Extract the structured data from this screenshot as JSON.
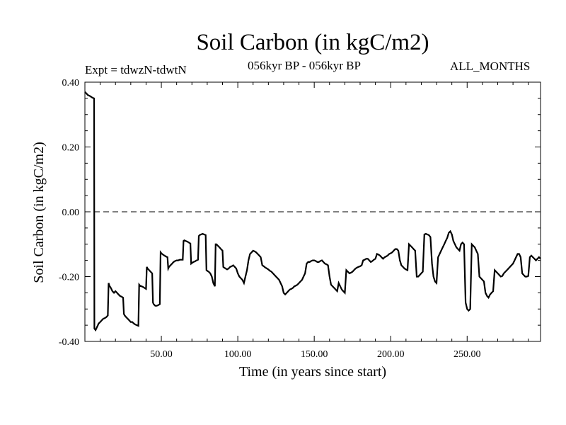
{
  "header": {
    "title": "Soil Carbon (in kgC/m2)",
    "expt": "Expt = tdwzN-tdwtN",
    "period": "056kyr BP - 056kyr BP",
    "months": "ALL_MONTHS"
  },
  "chart_data": {
    "type": "line",
    "title": "Soil Carbon (in kgC/m2)",
    "xlabel": "Time (in years since start)",
    "ylabel": "Soil Carbon (in kgC/m2)",
    "xlim": [
      0,
      298
    ],
    "ylim": [
      -0.4,
      0.4
    ],
    "x_ticks": [
      50,
      100,
      150,
      200,
      250
    ],
    "x_tick_labels": [
      "50.00",
      "100.00",
      "150.00",
      "200.00",
      "250.00"
    ],
    "y_ticks": [
      -0.4,
      -0.2,
      0.0,
      0.2,
      0.4
    ],
    "y_tick_labels": [
      "-0.40",
      "-0.20",
      "0.00",
      "0.20",
      "0.40"
    ],
    "reference_line": {
      "y": 0.0,
      "style": "dashed"
    },
    "grid": false,
    "series": [
      {
        "color": "#000000",
        "points": [
          [
            0,
            0.37
          ],
          [
            1,
            0.365
          ],
          [
            2,
            0.36
          ],
          [
            3,
            0.358
          ],
          [
            4,
            0.355
          ],
          [
            5,
            0.352
          ],
          [
            6,
            0.35
          ],
          [
            6.2,
            -0.36
          ],
          [
            7,
            -0.365
          ],
          [
            8,
            -0.355
          ],
          [
            9,
            -0.345
          ],
          [
            10,
            -0.34
          ],
          [
            11,
            -0.335
          ],
          [
            12,
            -0.33
          ],
          [
            13,
            -0.328
          ],
          [
            14,
            -0.325
          ],
          [
            15,
            -0.32
          ],
          [
            15.5,
            -0.22
          ],
          [
            16,
            -0.228
          ],
          [
            17,
            -0.235
          ],
          [
            18,
            -0.245
          ],
          [
            19,
            -0.25
          ],
          [
            20,
            -0.245
          ],
          [
            21,
            -0.25
          ],
          [
            22,
            -0.255
          ],
          [
            23,
            -0.26
          ],
          [
            24,
            -0.262
          ],
          [
            25,
            -0.265
          ],
          [
            25.5,
            -0.315
          ],
          [
            26,
            -0.32
          ],
          [
            27,
            -0.325
          ],
          [
            28,
            -0.33
          ],
          [
            29,
            -0.335
          ],
          [
            30,
            -0.34
          ],
          [
            31,
            -0.34
          ],
          [
            32,
            -0.345
          ],
          [
            33,
            -0.348
          ],
          [
            34,
            -0.35
          ],
          [
            35,
            -0.352
          ],
          [
            35.5,
            -0.225
          ],
          [
            36,
            -0.228
          ],
          [
            37,
            -0.23
          ],
          [
            38,
            -0.232
          ],
          [
            39,
            -0.235
          ],
          [
            40,
            -0.238
          ],
          [
            40.5,
            -0.17
          ],
          [
            41,
            -0.175
          ],
          [
            42,
            -0.18
          ],
          [
            43,
            -0.185
          ],
          [
            44,
            -0.19
          ],
          [
            44.5,
            -0.28
          ],
          [
            45,
            -0.285
          ],
          [
            46,
            -0.29
          ],
          [
            47,
            -0.29
          ],
          [
            48,
            -0.288
          ],
          [
            49,
            -0.285
          ],
          [
            49.5,
            -0.125
          ],
          [
            50,
            -0.128
          ],
          [
            51,
            -0.132
          ],
          [
            52,
            -0.135
          ],
          [
            53,
            -0.138
          ],
          [
            54,
            -0.14
          ],
          [
            54.5,
            -0.175
          ],
          [
            55,
            -0.17
          ],
          [
            56,
            -0.165
          ],
          [
            57,
            -0.16
          ],
          [
            58,
            -0.155
          ],
          [
            59,
            -0.152
          ],
          [
            60,
            -0.15
          ],
          [
            61,
            -0.15
          ],
          [
            62,
            -0.148
          ],
          [
            63,
            -0.148
          ],
          [
            64,
            -0.148
          ],
          [
            64.5,
            -0.09
          ],
          [
            65,
            -0.088
          ],
          [
            66,
            -0.09
          ],
          [
            67,
            -0.092
          ],
          [
            68,
            -0.095
          ],
          [
            69,
            -0.098
          ],
          [
            69.5,
            -0.16
          ],
          [
            70,
            -0.158
          ],
          [
            71,
            -0.155
          ],
          [
            72,
            -0.153
          ],
          [
            73,
            -0.15
          ],
          [
            74,
            -0.148
          ],
          [
            74.5,
            -0.075
          ],
          [
            75,
            -0.072
          ],
          [
            76,
            -0.07
          ],
          [
            77,
            -0.068
          ],
          [
            78,
            -0.07
          ],
          [
            79,
            -0.072
          ],
          [
            79.5,
            -0.18
          ],
          [
            80,
            -0.182
          ],
          [
            81,
            -0.185
          ],
          [
            82,
            -0.19
          ],
          [
            83,
            -0.2
          ],
          [
            84,
            -0.22
          ],
          [
            85,
            -0.23
          ],
          [
            85.5,
            -0.1
          ],
          [
            86,
            -0.1
          ],
          [
            87,
            -0.105
          ],
          [
            88,
            -0.11
          ],
          [
            89,
            -0.115
          ],
          [
            90,
            -0.12
          ],
          [
            90.5,
            -0.17
          ],
          [
            91,
            -0.172
          ],
          [
            92,
            -0.175
          ],
          [
            93,
            -0.178
          ],
          [
            94,
            -0.175
          ],
          [
            95,
            -0.17
          ],
          [
            96,
            -0.168
          ],
          [
            97,
            -0.165
          ],
          [
            98,
            -0.17
          ],
          [
            99,
            -0.175
          ],
          [
            100,
            -0.19
          ],
          [
            101,
            -0.2
          ],
          [
            102,
            -0.205
          ],
          [
            103,
            -0.21
          ],
          [
            104,
            -0.22
          ],
          [
            105,
            -0.2
          ],
          [
            106,
            -0.18
          ],
          [
            107,
            -0.15
          ],
          [
            108,
            -0.13
          ],
          [
            109,
            -0.125
          ],
          [
            110,
            -0.12
          ],
          [
            111,
            -0.122
          ],
          [
            112,
            -0.125
          ],
          [
            113,
            -0.13
          ],
          [
            114,
            -0.135
          ],
          [
            115,
            -0.14
          ],
          [
            116,
            -0.165
          ],
          [
            117,
            -0.168
          ],
          [
            118,
            -0.172
          ],
          [
            119,
            -0.175
          ],
          [
            120,
            -0.178
          ],
          [
            121,
            -0.182
          ],
          [
            122,
            -0.185
          ],
          [
            123,
            -0.19
          ],
          [
            124,
            -0.195
          ],
          [
            125,
            -0.2
          ],
          [
            126,
            -0.205
          ],
          [
            127,
            -0.21
          ],
          [
            128,
            -0.22
          ],
          [
            129,
            -0.23
          ],
          [
            130,
            -0.25
          ],
          [
            131,
            -0.255
          ],
          [
            132,
            -0.25
          ],
          [
            133,
            -0.245
          ],
          [
            134,
            -0.24
          ],
          [
            135,
            -0.238
          ],
          [
            136,
            -0.235
          ],
          [
            137,
            -0.23
          ],
          [
            138,
            -0.228
          ],
          [
            139,
            -0.225
          ],
          [
            140,
            -0.22
          ],
          [
            141,
            -0.215
          ],
          [
            142,
            -0.21
          ],
          [
            143,
            -0.2
          ],
          [
            144,
            -0.19
          ],
          [
            145,
            -0.16
          ],
          [
            146,
            -0.155
          ],
          [
            147,
            -0.155
          ],
          [
            148,
            -0.152
          ],
          [
            149,
            -0.15
          ],
          [
            150,
            -0.15
          ],
          [
            151,
            -0.152
          ],
          [
            152,
            -0.155
          ],
          [
            153,
            -0.155
          ],
          [
            154,
            -0.152
          ],
          [
            155,
            -0.15
          ],
          [
            156,
            -0.155
          ],
          [
            157,
            -0.16
          ],
          [
            158,
            -0.162
          ],
          [
            159,
            -0.165
          ],
          [
            160,
            -0.2
          ],
          [
            161,
            -0.225
          ],
          [
            162,
            -0.23
          ],
          [
            163,
            -0.235
          ],
          [
            164,
            -0.24
          ],
          [
            165,
            -0.245
          ],
          [
            166,
            -0.22
          ],
          [
            167,
            -0.23
          ],
          [
            168,
            -0.24
          ],
          [
            169,
            -0.245
          ],
          [
            170,
            -0.25
          ],
          [
            171,
            -0.18
          ],
          [
            172,
            -0.185
          ],
          [
            173,
            -0.19
          ],
          [
            174,
            -0.188
          ],
          [
            175,
            -0.185
          ],
          [
            176,
            -0.18
          ],
          [
            177,
            -0.175
          ],
          [
            178,
            -0.172
          ],
          [
            179,
            -0.17
          ],
          [
            180,
            -0.168
          ],
          [
            181,
            -0.165
          ],
          [
            182,
            -0.15
          ],
          [
            183,
            -0.148
          ],
          [
            184,
            -0.145
          ],
          [
            185,
            -0.145
          ],
          [
            186,
            -0.15
          ],
          [
            187,
            -0.155
          ],
          [
            188,
            -0.152
          ],
          [
            189,
            -0.148
          ],
          [
            190,
            -0.145
          ],
          [
            191,
            -0.13
          ],
          [
            192,
            -0.132
          ],
          [
            193,
            -0.135
          ],
          [
            194,
            -0.14
          ],
          [
            195,
            -0.145
          ],
          [
            196,
            -0.14
          ],
          [
            197,
            -0.138
          ],
          [
            198,
            -0.135
          ],
          [
            199,
            -0.13
          ],
          [
            200,
            -0.128
          ],
          [
            201,
            -0.125
          ],
          [
            202,
            -0.12
          ],
          [
            203,
            -0.115
          ],
          [
            204,
            -0.115
          ],
          [
            205,
            -0.12
          ],
          [
            206,
            -0.15
          ],
          [
            207,
            -0.165
          ],
          [
            208,
            -0.17
          ],
          [
            209,
            -0.175
          ],
          [
            210,
            -0.178
          ],
          [
            211,
            -0.18
          ],
          [
            212,
            -0.1
          ],
          [
            213,
            -0.105
          ],
          [
            214,
            -0.11
          ],
          [
            215,
            -0.115
          ],
          [
            216,
            -0.12
          ],
          [
            217,
            -0.2
          ],
          [
            218,
            -0.2
          ],
          [
            219,
            -0.195
          ],
          [
            220,
            -0.19
          ],
          [
            221,
            -0.185
          ],
          [
            222,
            -0.07
          ],
          [
            223,
            -0.068
          ],
          [
            224,
            -0.07
          ],
          [
            225,
            -0.072
          ],
          [
            226,
            -0.078
          ],
          [
            227,
            -0.16
          ],
          [
            228,
            -0.2
          ],
          [
            229,
            -0.215
          ],
          [
            230,
            -0.22
          ],
          [
            231,
            -0.14
          ],
          [
            232,
            -0.13
          ],
          [
            233,
            -0.12
          ],
          [
            234,
            -0.11
          ],
          [
            235,
            -0.1
          ],
          [
            236,
            -0.09
          ],
          [
            237,
            -0.08
          ],
          [
            238,
            -0.065
          ],
          [
            239,
            -0.06
          ],
          [
            240,
            -0.07
          ],
          [
            241,
            -0.09
          ],
          [
            242,
            -0.1
          ],
          [
            243,
            -0.11
          ],
          [
            244,
            -0.115
          ],
          [
            245,
            -0.12
          ],
          [
            246,
            -0.1
          ],
          [
            247,
            -0.095
          ],
          [
            248,
            -0.1
          ],
          [
            249,
            -0.28
          ],
          [
            250,
            -0.3
          ],
          [
            251,
            -0.305
          ],
          [
            252,
            -0.3
          ],
          [
            253,
            -0.1
          ],
          [
            254,
            -0.105
          ],
          [
            255,
            -0.11
          ],
          [
            256,
            -0.12
          ],
          [
            257,
            -0.13
          ],
          [
            258,
            -0.2
          ],
          [
            259,
            -0.205
          ],
          [
            260,
            -0.21
          ],
          [
            261,
            -0.215
          ],
          [
            262,
            -0.25
          ],
          [
            263,
            -0.26
          ],
          [
            264,
            -0.265
          ],
          [
            265,
            -0.255
          ],
          [
            266,
            -0.25
          ],
          [
            267,
            -0.245
          ],
          [
            268,
            -0.18
          ],
          [
            269,
            -0.185
          ],
          [
            270,
            -0.19
          ],
          [
            271,
            -0.195
          ],
          [
            272,
            -0.2
          ],
          [
            273,
            -0.198
          ],
          [
            274,
            -0.19
          ],
          [
            275,
            -0.185
          ],
          [
            276,
            -0.18
          ],
          [
            277,
            -0.175
          ],
          [
            278,
            -0.17
          ],
          [
            279,
            -0.165
          ],
          [
            280,
            -0.16
          ],
          [
            281,
            -0.15
          ],
          [
            282,
            -0.14
          ],
          [
            283,
            -0.13
          ],
          [
            284,
            -0.13
          ],
          [
            285,
            -0.14
          ],
          [
            286,
            -0.19
          ],
          [
            287,
            -0.195
          ],
          [
            288,
            -0.2
          ],
          [
            289,
            -0.2
          ],
          [
            290,
            -0.198
          ],
          [
            291,
            -0.14
          ],
          [
            292,
            -0.135
          ],
          [
            293,
            -0.14
          ],
          [
            294,
            -0.145
          ],
          [
            295,
            -0.15
          ],
          [
            296,
            -0.145
          ],
          [
            297,
            -0.14
          ],
          [
            298,
            -0.145
          ]
        ]
      }
    ]
  }
}
